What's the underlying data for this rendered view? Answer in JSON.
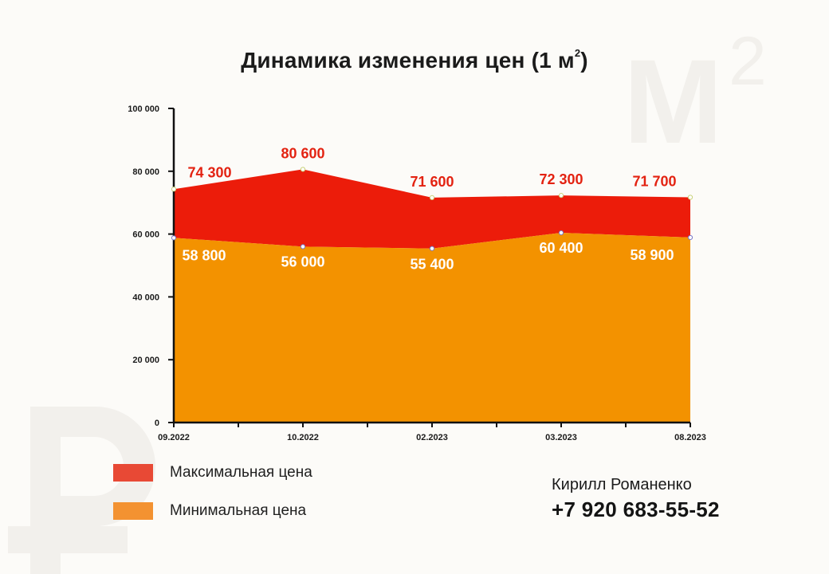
{
  "chart_data": {
    "type": "area",
    "title": "Динамика изменения цен (1 м",
    "title_superscript": "2",
    "categories": [
      "09.2022",
      "10.2022",
      "02.2023",
      "03.2023",
      "08.2023"
    ],
    "y_ticks": [
      "0",
      "20 000",
      "40 000",
      "60 000",
      "80 000",
      "100 000"
    ],
    "ylim": [
      0,
      100000
    ],
    "grid": false,
    "legend_position": "bottom-left",
    "series": [
      {
        "name": "Максимальная цена",
        "color": "#ec1c0a",
        "legend_color": "#e84935",
        "values": [
          74300,
          80600,
          71600,
          72300,
          71700
        ],
        "labels": [
          "74 300",
          "80 600",
          "71 600",
          "72 300",
          "71 700"
        ],
        "label_color": "#e32211"
      },
      {
        "name": "Минимальная цена",
        "color": "#f39200",
        "legend_color": "#f39231",
        "values": [
          58800,
          56000,
          55400,
          60400,
          58900
        ],
        "labels": [
          "58 800",
          "56 000",
          "55 400",
          "60 400",
          "58 900"
        ],
        "label_color": "#ffffff"
      }
    ]
  },
  "contact": {
    "name": "Кирилл Романенко",
    "phone": "+7 920 683-55-52"
  },
  "colors": {
    "background": "#fcfbf8",
    "axis": "#111111",
    "watermark": "#f2f0ec"
  },
  "watermarks": {
    "top_right": "М",
    "top_right_sup": "2",
    "bottom_left": "ruble-sign-icon"
  }
}
